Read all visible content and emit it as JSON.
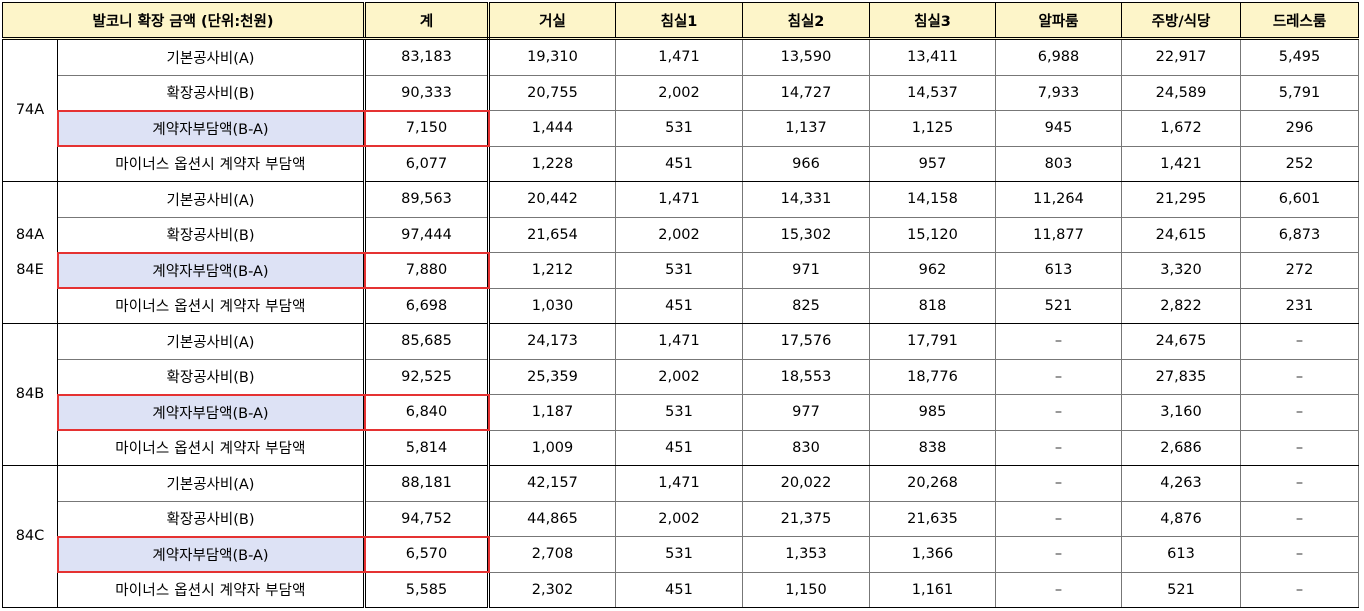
{
  "header": {
    "title": "발코니 확장 금액 (단위:천원)",
    "columns": [
      "계",
      "거실",
      "침실1",
      "침실2",
      "침실3",
      "알파룸",
      "주방/식당",
      "드레스룸"
    ]
  },
  "groups": [
    {
      "types": [
        "74A"
      ],
      "rows": [
        {
          "label": "기본공사비(A)",
          "values": [
            "83,183",
            "19,310",
            "1,471",
            "13,590",
            "13,411",
            "6,988",
            "22,917",
            "5,495"
          ]
        },
        {
          "label": "확장공사비(B)",
          "values": [
            "90,333",
            "20,755",
            "2,002",
            "14,727",
            "14,537",
            "7,933",
            "24,589",
            "5,791"
          ]
        },
        {
          "label": "계약자부담액(B-A)",
          "values": [
            "7,150",
            "1,444",
            "531",
            "1,137",
            "1,125",
            "945",
            "1,672",
            "296"
          ]
        },
        {
          "label": "마이너스 옵션시 계약자 부담액",
          "values": [
            "6,077",
            "1,228",
            "451",
            "966",
            "957",
            "803",
            "1,421",
            "252"
          ]
        }
      ]
    },
    {
      "types": [
        "84A",
        "84E"
      ],
      "rows": [
        {
          "label": "기본공사비(A)",
          "values": [
            "89,563",
            "20,442",
            "1,471",
            "14,331",
            "14,158",
            "11,264",
            "21,295",
            "6,601"
          ]
        },
        {
          "label": "확장공사비(B)",
          "values": [
            "97,444",
            "21,654",
            "2,002",
            "15,302",
            "15,120",
            "11,877",
            "24,615",
            "6,873"
          ]
        },
        {
          "label": "계약자부담액(B-A)",
          "values": [
            "7,880",
            "1,212",
            "531",
            "971",
            "962",
            "613",
            "3,320",
            "272"
          ]
        },
        {
          "label": "마이너스 옵션시 계약자 부담액",
          "values": [
            "6,698",
            "1,030",
            "451",
            "825",
            "818",
            "521",
            "2,822",
            "231"
          ]
        }
      ]
    },
    {
      "types": [
        "84B"
      ],
      "rows": [
        {
          "label": "기본공사비(A)",
          "values": [
            "85,685",
            "24,173",
            "1,471",
            "17,576",
            "17,791",
            "–",
            "24,675",
            "–"
          ]
        },
        {
          "label": "확장공사비(B)",
          "values": [
            "92,525",
            "25,359",
            "2,002",
            "18,553",
            "18,776",
            "–",
            "27,835",
            "–"
          ]
        },
        {
          "label": "계약자부담액(B-A)",
          "values": [
            "6,840",
            "1,187",
            "531",
            "977",
            "985",
            "–",
            "3,160",
            "–"
          ]
        },
        {
          "label": "마이너스 옵션시 계약자 부담액",
          "values": [
            "5,814",
            "1,009",
            "451",
            "830",
            "838",
            "–",
            "2,686",
            "–"
          ]
        }
      ]
    },
    {
      "types": [
        "84C"
      ],
      "rows": [
        {
          "label": "기본공사비(A)",
          "values": [
            "88,181",
            "42,157",
            "1,471",
            "20,022",
            "20,268",
            "–",
            "4,263",
            "–"
          ]
        },
        {
          "label": "확장공사비(B)",
          "values": [
            "94,752",
            "44,865",
            "2,002",
            "21,375",
            "21,635",
            "–",
            "4,876",
            "–"
          ]
        },
        {
          "label": "계약자부담액(B-A)",
          "values": [
            "6,570",
            "2,708",
            "531",
            "1,353",
            "1,366",
            "–",
            "613",
            "–"
          ]
        },
        {
          "label": "마이너스 옵션시 계약자 부담액",
          "values": [
            "5,585",
            "2,302",
            "451",
            "1,150",
            "1,161",
            "–",
            "521",
            "–"
          ]
        }
      ]
    }
  ],
  "colors": {
    "header_bg": "#fdf5c9",
    "highlight_label_bg": "#dde2f5",
    "highlight_border": "#e53232"
  }
}
